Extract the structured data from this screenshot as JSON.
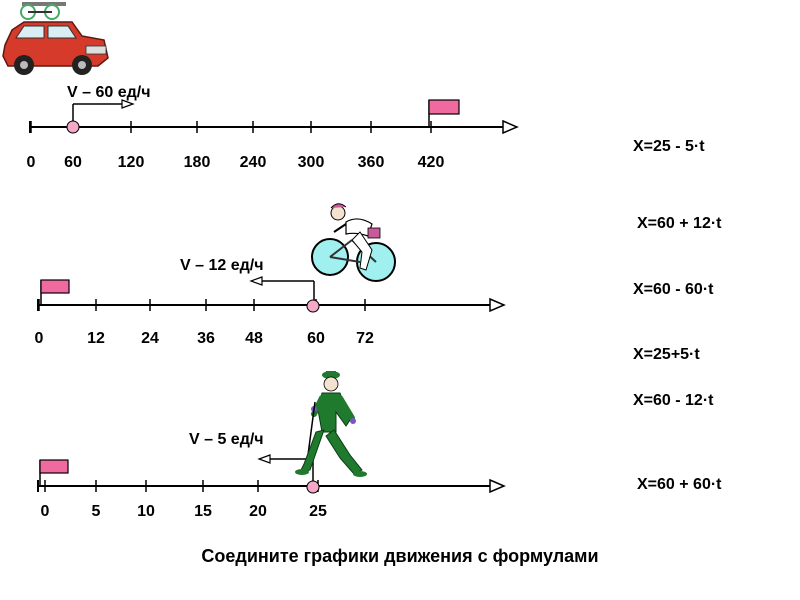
{
  "lines": [
    {
      "velocity_label": "V – 60 ед/ч",
      "ticks": [
        "0",
        "60",
        "120",
        "180",
        "240",
        "300",
        "360",
        "420"
      ],
      "point_value": 60,
      "direction": "right",
      "object_icon": "car-icon",
      "flag_icon": "finish-flag-icon"
    },
    {
      "velocity_label": "V – 12 ед/ч",
      "ticks": [
        "0",
        "12",
        "24",
        "36",
        "48",
        "60",
        "72"
      ],
      "point_value": 60,
      "direction": "left",
      "object_icon": "cyclist-icon",
      "flag_icon": "finish-flag-icon"
    },
    {
      "velocity_label": "V – 5 ед/ч",
      "ticks": [
        "0",
        "5",
        "10",
        "15",
        "20",
        "25"
      ],
      "point_value": 25,
      "direction": "left",
      "object_icon": "walker-icon",
      "flag_icon": "finish-flag-icon"
    }
  ],
  "formulas": [
    "X=25 - 5·t",
    "X=60 + 12·t",
    "X=60 - 60·t",
    "X=25+5·t",
    "X=60 - 12·t",
    "X=60 + 60·t"
  ],
  "caption": "Соедините графики движения с формулами",
  "colors": {
    "flag": "#f06aa0",
    "point": "#f7a8c8",
    "wheel": "#9ff0ee",
    "car": "#d63a2a",
    "walker": "#1f7a2e"
  }
}
